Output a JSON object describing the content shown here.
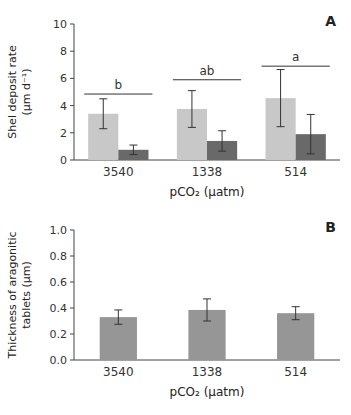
{
  "chart_data": [
    {
      "type": "bar",
      "title": "A",
      "xlabel": "pCO₂ (μatm)",
      "ylabel": [
        "Shel deposit rate",
        "(μm d⁻¹)"
      ],
      "categories": [
        "3540",
        "1338",
        "514"
      ],
      "series": [
        {
          "color": "#c8c8c8",
          "values": [
            3.4,
            3.75,
            4.55
          ],
          "errors": [
            1.1,
            1.35,
            2.1
          ]
        },
        {
          "color": "#696969",
          "values": [
            0.75,
            1.4,
            1.9
          ],
          "errors": [
            0.35,
            0.75,
            1.45
          ]
        }
      ],
      "ylim": [
        0,
        10
      ],
      "yticks": [
        0,
        2,
        4,
        6,
        8,
        10
      ],
      "annotations": [
        {
          "text": "b",
          "x": "3540",
          "y": 4.85
        },
        {
          "text": "ab",
          "x": "1338",
          "y": 5.9
        },
        {
          "text": "a",
          "x": "514",
          "y": 6.9
        }
      ]
    },
    {
      "type": "bar",
      "title": "B",
      "xlabel": "pCO₂ (μatm)",
      "ylabel": [
        "Thickness of aragonitic",
        "tablets (μm)"
      ],
      "categories": [
        "3540",
        "1338",
        "514"
      ],
      "values": [
        0.33,
        0.385,
        0.36
      ],
      "errors": [
        0.055,
        0.085,
        0.05
      ],
      "color": "#969696",
      "ylim": [
        0,
        1.0
      ],
      "yticks": [
        {
          "value": 0,
          "label": "0.0"
        },
        0.2,
        0.4,
        0.6,
        0.8,
        {
          "value": 1,
          "label": "1.0"
        }
      ]
    }
  ]
}
